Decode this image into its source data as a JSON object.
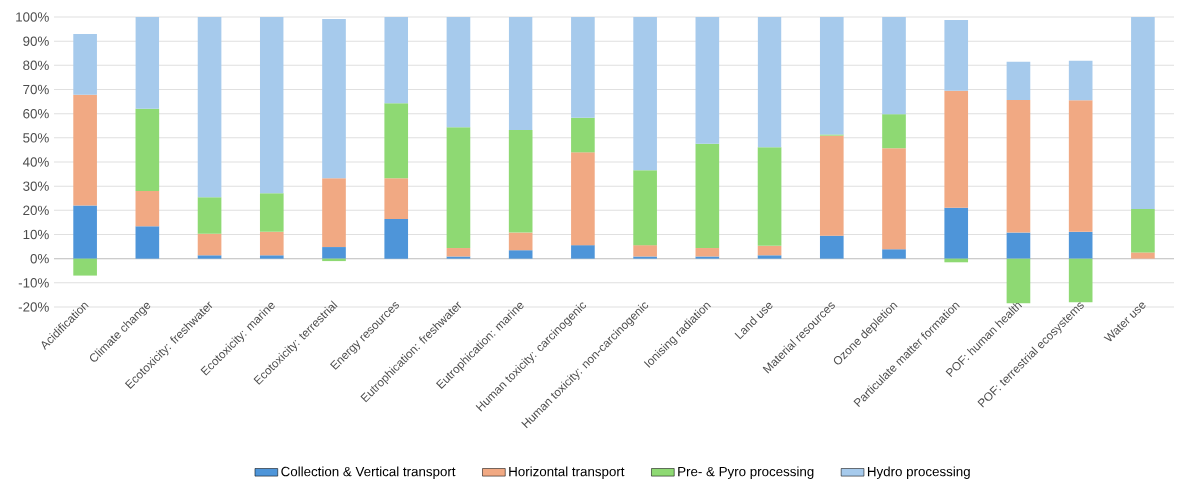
{
  "chart_data": {
    "type": "bar",
    "stacked": true,
    "categories": [
      "Acidification",
      "Climate change",
      "Ecotoxicity: freshwater",
      "Ecotoxicity: marine",
      "Ecotoxicity: terrestrial",
      "Energy resources",
      "Eutrophication: freshwater",
      "Eutrophication: marine",
      "Human toxicity: carcinogenic",
      "Human toxicity: non-carcinogenic",
      "Ionising radiation",
      "Land use",
      "Material resources",
      "Ozone depletion",
      "Particulate matter formation",
      "POF: human health",
      "POF: terrestrial ecosystems",
      "Water use"
    ],
    "series": [
      {
        "name": "Collection & Vertical transport",
        "color": "#4e95d9",
        "values": [
          22,
          13.4,
          1.4,
          1.4,
          4.8,
          16.4,
          0.9,
          3.5,
          5.6,
          0.9,
          0.9,
          1.4,
          9.5,
          3.9,
          21.1,
          10.8,
          11.1,
          0
        ]
      },
      {
        "name": "Horizontal transport",
        "color": "#f1a983",
        "values": [
          45.8,
          14.6,
          8.9,
          9.7,
          28.5,
          16.9,
          3.5,
          7.3,
          38.4,
          4.7,
          3.5,
          3.9,
          41.4,
          41.8,
          48.4,
          54.9,
          54.5,
          2.6
        ]
      },
      {
        "name": "Pre- & Pyro processing",
        "color": "#8ed973",
        "values": [
          -7,
          34,
          15.1,
          16,
          -1,
          31,
          50,
          42.4,
          14.3,
          31,
          43.1,
          40.8,
          0.5,
          14.1,
          -1.5,
          -18.4,
          -18,
          18
        ]
      },
      {
        "name": "Hydro processing",
        "color": "#a6caec",
        "values": [
          25.2,
          38,
          74.6,
          72.9,
          65.9,
          35.7,
          45.6,
          46.8,
          41.7,
          63.4,
          52.5,
          53.9,
          48.6,
          40.2,
          29.3,
          15.8,
          16.3,
          79.4
        ]
      }
    ],
    "ylim": [
      -20,
      100
    ],
    "yticks": [
      {
        "value": -20,
        "label": "-20%"
      },
      {
        "value": -10,
        "label": "-10%"
      },
      {
        "value": 0,
        "label": "0%"
      },
      {
        "value": 10,
        "label": "10%"
      },
      {
        "value": 20,
        "label": "20%"
      },
      {
        "value": 30,
        "label": "30%"
      },
      {
        "value": 40,
        "label": "40%"
      },
      {
        "value": 50,
        "label": "50%"
      },
      {
        "value": 60,
        "label": "60%"
      },
      {
        "value": 70,
        "label": "70%"
      },
      {
        "value": 80,
        "label": "80%"
      },
      {
        "value": 90,
        "label": "90%"
      },
      {
        "value": 100,
        "label": "100%"
      }
    ],
    "grid": "y",
    "legend": "bottom"
  }
}
